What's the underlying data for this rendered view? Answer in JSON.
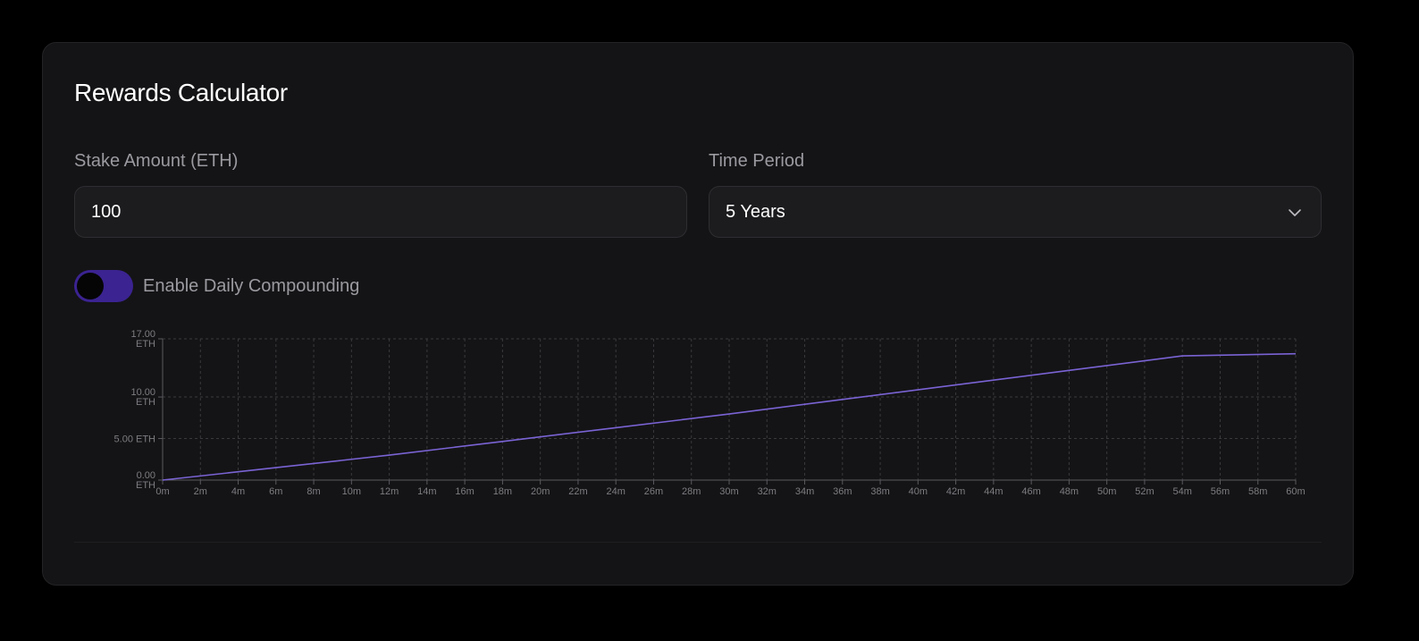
{
  "calculator": {
    "title": "Rewards Calculator",
    "stake": {
      "label": "Stake Amount (ETH)",
      "value": "100"
    },
    "period": {
      "label": "Time Period",
      "selected": "5 Years"
    },
    "compounding": {
      "label": "Enable Daily Compounding",
      "enabled": true
    }
  },
  "colors": {
    "line": "#7a63d4",
    "toggle_track": "#3b2391",
    "grid": "#3a3a3e",
    "axis_text": "#7d7d82"
  },
  "icons": {
    "select": "chevron-down-icon"
  },
  "chart_data": {
    "type": "line",
    "title": "",
    "xlabel": "",
    "ylabel": "",
    "x_ticks": [
      "0m",
      "2m",
      "4m",
      "6m",
      "8m",
      "10m",
      "12m",
      "14m",
      "16m",
      "18m",
      "20m",
      "22m",
      "24m",
      "26m",
      "28m",
      "30m",
      "32m",
      "34m",
      "36m",
      "38m",
      "40m",
      "42m",
      "44m",
      "46m",
      "48m",
      "50m",
      "52m",
      "54m",
      "56m",
      "58m",
      "60m"
    ],
    "y_ticks": [
      {
        "value": 0,
        "label": [
          "0.00",
          "ETH"
        ]
      },
      {
        "value": 5,
        "label": [
          "5.00 ETH"
        ]
      },
      {
        "value": 10,
        "label": [
          "10.00",
          "ETH"
        ]
      },
      {
        "value": 17,
        "label": [
          "17.00",
          "ETH"
        ]
      }
    ],
    "xlim": [
      0,
      60
    ],
    "ylim": [
      0,
      17
    ],
    "grid": true,
    "series": [
      {
        "x": [
          0,
          6,
          12,
          18,
          24,
          30,
          36,
          42,
          48,
          54,
          60
        ],
        "y": [
          0,
          1.5,
          3.0,
          4.65,
          6.3,
          7.95,
          9.7,
          11.45,
          13.2,
          14.95,
          15.2
        ]
      }
    ]
  }
}
